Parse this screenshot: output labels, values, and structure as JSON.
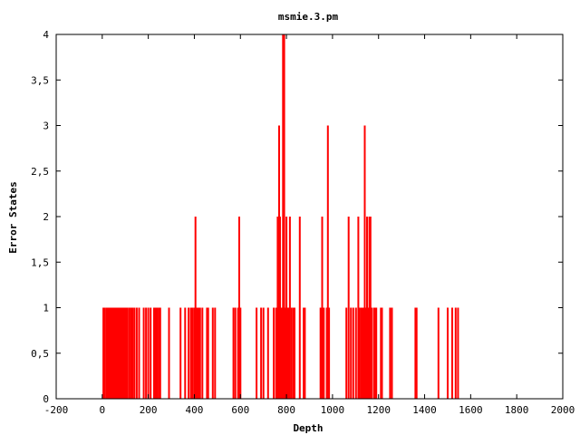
{
  "chart_data": {
    "type": "bar",
    "title": "msmie.3.pm",
    "xlabel": "Depth",
    "ylabel": "Error States",
    "xlim": [
      -200,
      2000
    ],
    "ylim": [
      0,
      4
    ],
    "x_ticks": [
      -200,
      0,
      200,
      400,
      600,
      800,
      1000,
      1200,
      1400,
      1600,
      1800,
      2000
    ],
    "y_ticks": [
      0,
      0.5,
      1,
      1.5,
      2,
      2.5,
      3,
      3.5,
      4
    ],
    "y_tick_labels": [
      "0",
      "0,5",
      "1",
      "1,5",
      "2",
      "2,5",
      "3",
      "3,5",
      "4"
    ],
    "grid": false,
    "bar_color": "#ff0000",
    "points": [
      {
        "x": 5,
        "y": 1
      },
      {
        "x": 12,
        "y": 1
      },
      {
        "x": 20,
        "y": 1
      },
      {
        "x": 25,
        "y": 1
      },
      {
        "x": 30,
        "y": 1
      },
      {
        "x": 35,
        "y": 1
      },
      {
        "x": 40,
        "y": 1
      },
      {
        "x": 45,
        "y": 1
      },
      {
        "x": 50,
        "y": 1
      },
      {
        "x": 55,
        "y": 1
      },
      {
        "x": 60,
        "y": 1
      },
      {
        "x": 65,
        "y": 1
      },
      {
        "x": 70,
        "y": 1
      },
      {
        "x": 75,
        "y": 1
      },
      {
        "x": 80,
        "y": 1
      },
      {
        "x": 85,
        "y": 1
      },
      {
        "x": 90,
        "y": 1
      },
      {
        "x": 95,
        "y": 1
      },
      {
        "x": 100,
        "y": 1
      },
      {
        "x": 105,
        "y": 1
      },
      {
        "x": 110,
        "y": 1
      },
      {
        "x": 118,
        "y": 1
      },
      {
        "x": 125,
        "y": 1
      },
      {
        "x": 132,
        "y": 1
      },
      {
        "x": 140,
        "y": 1
      },
      {
        "x": 150,
        "y": 1
      },
      {
        "x": 160,
        "y": 1
      },
      {
        "x": 180,
        "y": 1
      },
      {
        "x": 190,
        "y": 1
      },
      {
        "x": 200,
        "y": 1
      },
      {
        "x": 210,
        "y": 1
      },
      {
        "x": 225,
        "y": 1
      },
      {
        "x": 232,
        "y": 1
      },
      {
        "x": 238,
        "y": 1
      },
      {
        "x": 245,
        "y": 1
      },
      {
        "x": 252,
        "y": 1
      },
      {
        "x": 290,
        "y": 1
      },
      {
        "x": 340,
        "y": 1
      },
      {
        "x": 360,
        "y": 1
      },
      {
        "x": 375,
        "y": 1
      },
      {
        "x": 385,
        "y": 1
      },
      {
        "x": 392,
        "y": 1
      },
      {
        "x": 400,
        "y": 1
      },
      {
        "x": 405,
        "y": 2
      },
      {
        "x": 410,
        "y": 1
      },
      {
        "x": 418,
        "y": 1
      },
      {
        "x": 425,
        "y": 1
      },
      {
        "x": 435,
        "y": 1
      },
      {
        "x": 455,
        "y": 1
      },
      {
        "x": 460,
        "y": 1
      },
      {
        "x": 480,
        "y": 1
      },
      {
        "x": 490,
        "y": 1
      },
      {
        "x": 570,
        "y": 1
      },
      {
        "x": 578,
        "y": 1
      },
      {
        "x": 590,
        "y": 1
      },
      {
        "x": 595,
        "y": 2
      },
      {
        "x": 600,
        "y": 1
      },
      {
        "x": 670,
        "y": 1
      },
      {
        "x": 690,
        "y": 1
      },
      {
        "x": 700,
        "y": 1
      },
      {
        "x": 720,
        "y": 1
      },
      {
        "x": 745,
        "y": 1
      },
      {
        "x": 755,
        "y": 1
      },
      {
        "x": 762,
        "y": 2
      },
      {
        "x": 768,
        "y": 3
      },
      {
        "x": 772,
        "y": 2
      },
      {
        "x": 778,
        "y": 1
      },
      {
        "x": 782,
        "y": 1
      },
      {
        "x": 785,
        "y": 4
      },
      {
        "x": 790,
        "y": 4
      },
      {
        "x": 795,
        "y": 1
      },
      {
        "x": 800,
        "y": 2
      },
      {
        "x": 805,
        "y": 1
      },
      {
        "x": 810,
        "y": 1
      },
      {
        "x": 815,
        "y": 2
      },
      {
        "x": 822,
        "y": 1
      },
      {
        "x": 830,
        "y": 1
      },
      {
        "x": 835,
        "y": 1
      },
      {
        "x": 858,
        "y": 2
      },
      {
        "x": 875,
        "y": 1
      },
      {
        "x": 880,
        "y": 1
      },
      {
        "x": 948,
        "y": 1
      },
      {
        "x": 955,
        "y": 2
      },
      {
        "x": 962,
        "y": 1
      },
      {
        "x": 975,
        "y": 1
      },
      {
        "x": 980,
        "y": 3
      },
      {
        "x": 985,
        "y": 1
      },
      {
        "x": 1060,
        "y": 1
      },
      {
        "x": 1070,
        "y": 2
      },
      {
        "x": 1080,
        "y": 1
      },
      {
        "x": 1090,
        "y": 1
      },
      {
        "x": 1102,
        "y": 1
      },
      {
        "x": 1112,
        "y": 2
      },
      {
        "x": 1118,
        "y": 1
      },
      {
        "x": 1125,
        "y": 1
      },
      {
        "x": 1130,
        "y": 1
      },
      {
        "x": 1135,
        "y": 1
      },
      {
        "x": 1140,
        "y": 3
      },
      {
        "x": 1145,
        "y": 1
      },
      {
        "x": 1150,
        "y": 2
      },
      {
        "x": 1155,
        "y": 1
      },
      {
        "x": 1160,
        "y": 2
      },
      {
        "x": 1165,
        "y": 2
      },
      {
        "x": 1170,
        "y": 1
      },
      {
        "x": 1180,
        "y": 1
      },
      {
        "x": 1185,
        "y": 1
      },
      {
        "x": 1190,
        "y": 1
      },
      {
        "x": 1210,
        "y": 1
      },
      {
        "x": 1215,
        "y": 1
      },
      {
        "x": 1250,
        "y": 1
      },
      {
        "x": 1258,
        "y": 1
      },
      {
        "x": 1360,
        "y": 1
      },
      {
        "x": 1365,
        "y": 1
      },
      {
        "x": 1460,
        "y": 1
      },
      {
        "x": 1500,
        "y": 1
      },
      {
        "x": 1520,
        "y": 1
      },
      {
        "x": 1535,
        "y": 1
      },
      {
        "x": 1545,
        "y": 1
      }
    ]
  }
}
